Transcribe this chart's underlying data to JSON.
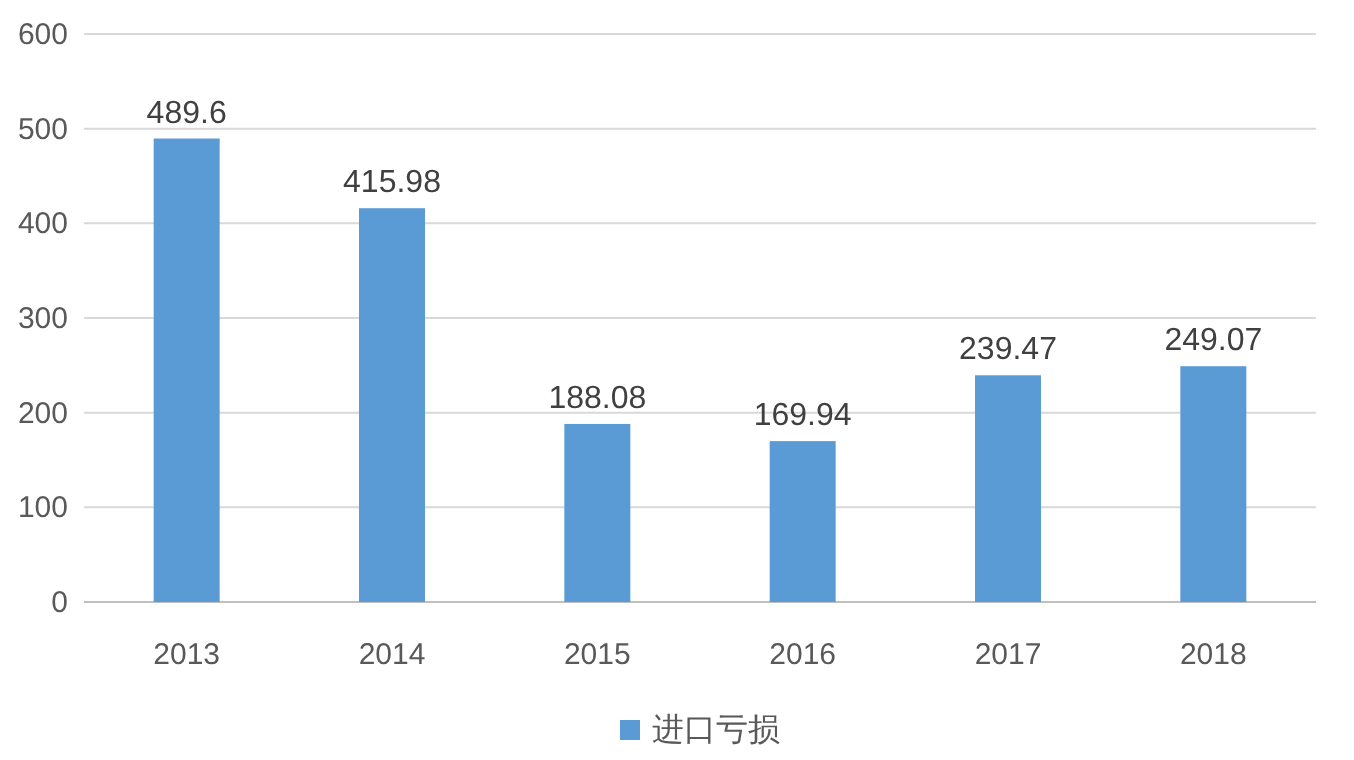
{
  "chart_data": {
    "type": "bar",
    "categories": [
      "2013",
      "2014",
      "2015",
      "2016",
      "2017",
      "2018"
    ],
    "series": [
      {
        "name": "进口亏损",
        "color": "#5b9bd5",
        "values": [
          489.6,
          415.98,
          188.08,
          169.94,
          239.47,
          249.07
        ]
      }
    ],
    "ylim": [
      0,
      600
    ],
    "yticks": [
      0,
      100,
      200,
      300,
      400,
      500,
      600
    ],
    "grid": "y",
    "legend": "bottom",
    "data_labels": true
  }
}
